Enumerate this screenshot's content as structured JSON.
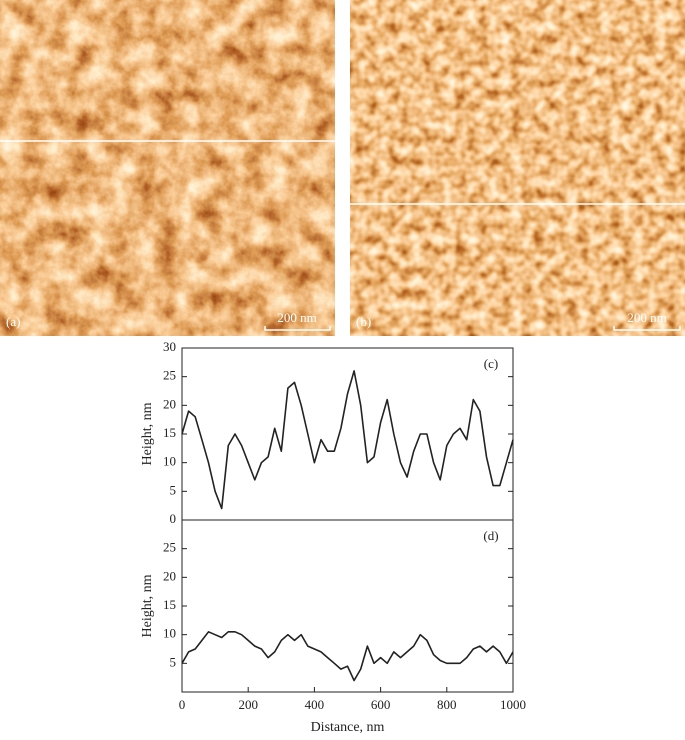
{
  "panels": [
    {
      "label": "(a)",
      "scale_bar": "200 nm"
    },
    {
      "label": "(b)",
      "scale_bar": "200 nm"
    }
  ],
  "chart_data": [
    {
      "type": "line",
      "panel_label": "(c)",
      "ylabel": "Height, nm",
      "color": "#222222",
      "x": [
        0,
        20,
        40,
        60,
        80,
        100,
        120,
        140,
        160,
        180,
        200,
        220,
        240,
        260,
        280,
        300,
        320,
        340,
        360,
        380,
        400,
        420,
        440,
        460,
        480,
        500,
        520,
        540,
        560,
        580,
        600,
        620,
        640,
        660,
        680,
        700,
        720,
        740,
        760,
        780,
        800,
        820,
        840,
        860,
        880,
        900,
        920,
        940,
        960,
        980,
        1000
      ],
      "values": [
        15,
        19,
        18,
        14,
        10,
        5,
        2,
        13,
        15,
        13,
        10,
        7,
        10,
        11,
        16,
        12,
        23,
        24,
        20,
        15,
        10,
        14,
        12,
        12,
        16,
        22,
        26,
        20,
        10,
        11,
        17,
        21,
        15,
        10,
        7.5,
        12,
        15,
        15,
        10,
        7,
        13,
        15,
        16,
        14,
        21,
        19,
        11,
        6,
        6,
        10,
        14
      ],
      "xlim": [
        0,
        1000
      ],
      "ylim": [
        0,
        30
      ],
      "yticks": [
        0,
        5,
        10,
        15,
        20,
        25,
        30
      ]
    },
    {
      "type": "line",
      "panel_label": "(d)",
      "ylabel": "Height, nm",
      "xlabel": "Distance, nm",
      "color": "#222222",
      "x": [
        0,
        20,
        40,
        60,
        80,
        100,
        120,
        140,
        160,
        180,
        200,
        220,
        240,
        260,
        280,
        300,
        320,
        340,
        360,
        380,
        400,
        420,
        440,
        460,
        480,
        500,
        520,
        540,
        560,
        580,
        600,
        620,
        640,
        660,
        680,
        700,
        720,
        740,
        760,
        780,
        800,
        820,
        840,
        860,
        880,
        900,
        920,
        940,
        960,
        980,
        1000
      ],
      "values": [
        5,
        7,
        7.5,
        9,
        10.5,
        10,
        9.5,
        10.5,
        10.5,
        10,
        9,
        8,
        7.5,
        6,
        7,
        9,
        10,
        9,
        10,
        8,
        7.5,
        7,
        6,
        5,
        4,
        4.5,
        2,
        4,
        8,
        5,
        6,
        5,
        7,
        6,
        7,
        8,
        10,
        9,
        6.5,
        5.5,
        5,
        5,
        5,
        6,
        7.5,
        8,
        7,
        8,
        7,
        5,
        7
      ],
      "xlim": [
        0,
        1000
      ],
      "ylim": [
        0,
        30
      ],
      "yticks": [
        5,
        10,
        15,
        20,
        25
      ],
      "xticks": [
        0,
        200,
        400,
        600,
        800,
        1000
      ]
    }
  ]
}
